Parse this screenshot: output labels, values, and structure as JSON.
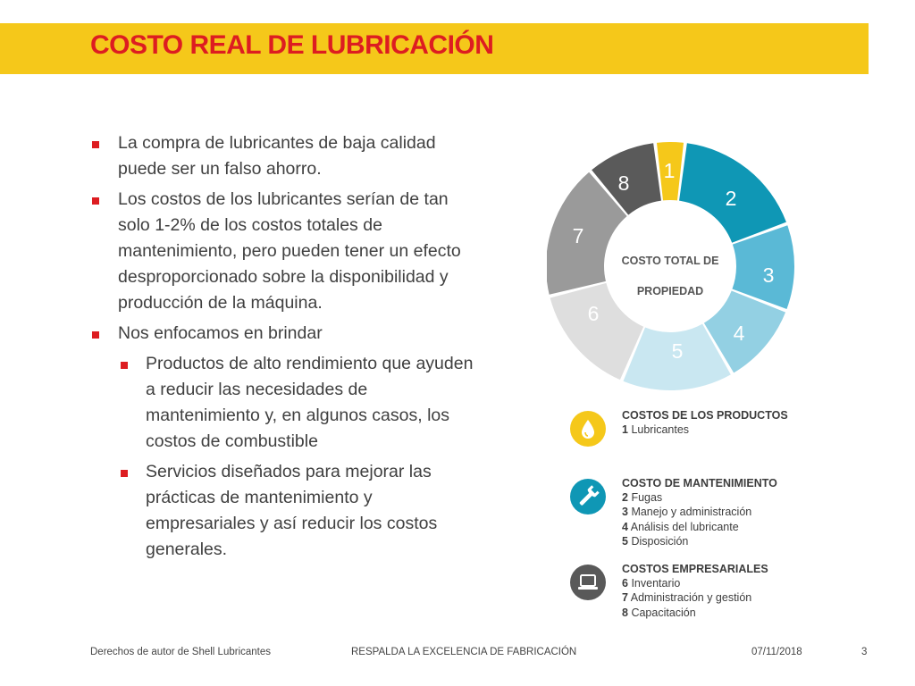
{
  "title": "COSTO REAL DE LUBRICACIÓN",
  "bullets": [
    {
      "text": "La compra de lubricantes de baja calidad puede ser un falso ahorro."
    },
    {
      "text": "Los costos de los lubricantes serían de tan solo 1-2% de los costos totales de mantenimiento, pero pueden tener un efecto desproporcionado sobre la disponibilidad y producción de la máquina."
    },
    {
      "text": "Nos enfocamos en brindar"
    },
    {
      "text": "Productos de alto rendimiento que ayuden a reducir las necesidades de mantenimiento y, en algunos casos, los costos de combustible"
    },
    {
      "text": "Servicios diseñados para mejorar las prácticas de mantenimiento y empresariales y así reducir los costos generales."
    }
  ],
  "donut": {
    "center_line1": "COSTO TOTAL DE",
    "center_line2": "PROPIEDAD",
    "segments": [
      {
        "label": "1",
        "color": "#f5c81a"
      },
      {
        "label": "2",
        "color": "#0f97b5"
      },
      {
        "label": "3",
        "color": "#5ab9d6"
      },
      {
        "label": "4",
        "color": "#93d0e3"
      },
      {
        "label": "5",
        "color": "#c9e7f1"
      },
      {
        "label": "6",
        "color": "#dedede"
      },
      {
        "label": "7",
        "color": "#9a9a9a"
      },
      {
        "label": "8",
        "color": "#5a5a5a"
      }
    ]
  },
  "legend": [
    {
      "heading": "COSTOS DE LOS PRODUCTOS",
      "icon": "oil-drop-icon",
      "icon_color": "#f5c81a",
      "items": [
        {
          "num": "1",
          "text": "Lubricantes"
        }
      ]
    },
    {
      "heading": "COSTO DE MANTENIMIENTO",
      "icon": "wrench-icon",
      "icon_color": "#0f97b5",
      "items": [
        {
          "num": "2",
          "text": "Fugas"
        },
        {
          "num": "3",
          "text": "Manejo y administración"
        },
        {
          "num": "4",
          "text": "Análisis del lubricante"
        },
        {
          "num": "5",
          "text": "Disposición"
        }
      ]
    },
    {
      "heading": "COSTOS EMPRESARIALES",
      "icon": "laptop-icon",
      "icon_color": "#595959",
      "items": [
        {
          "num": "6",
          "text": "Inventario"
        },
        {
          "num": "7",
          "text": "Administración y gestión"
        },
        {
          "num": "8",
          "text": "Capacitación"
        }
      ]
    }
  ],
  "footer": {
    "left": "Derechos de autor de Shell Lubricantes",
    "center": "RESPALDA LA EXCELENCIA DE FABRICACIÓN",
    "date": "07/11/2018",
    "page": "3"
  },
  "colors": {
    "accent_red": "#dd1d21",
    "title_bar": "#f5c81a"
  }
}
